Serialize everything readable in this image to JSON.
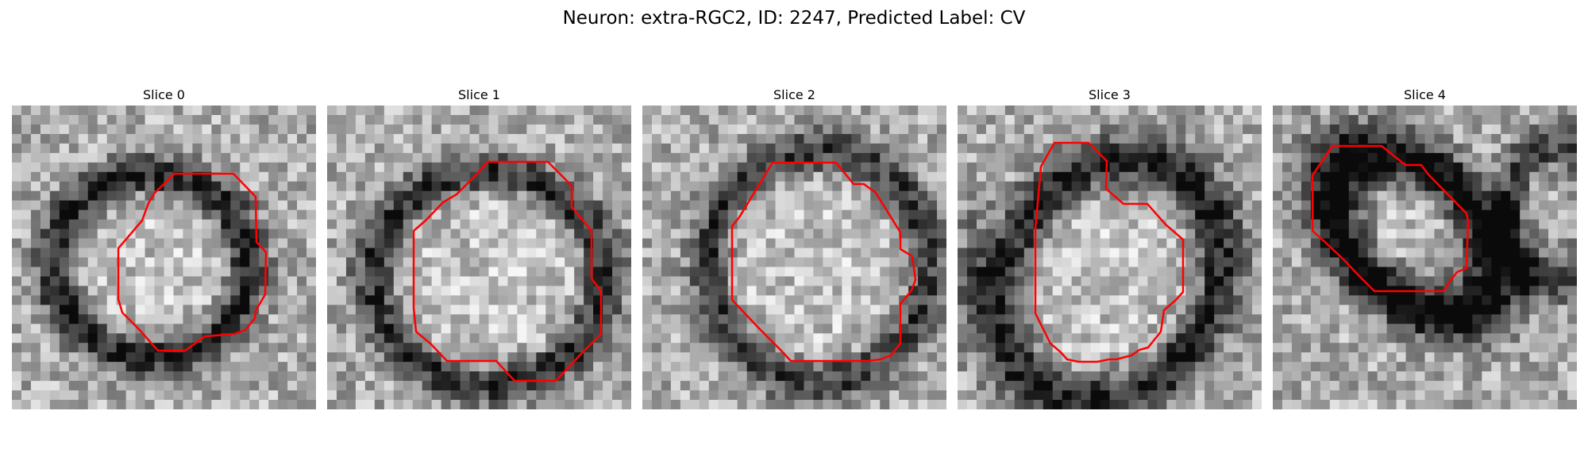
{
  "figure": {
    "title": "Neuron: extra-RGC2, ID: 2247, Predicted Label: CV"
  },
  "colors": {
    "contour": "#ff0000",
    "background": "#ffffff"
  },
  "panels": [
    {
      "title": "Slice 0"
    },
    {
      "title": "Slice 1"
    },
    {
      "title": "Slice 2"
    },
    {
      "title": "Slice 3"
    },
    {
      "title": "Slice 4"
    }
  ]
}
